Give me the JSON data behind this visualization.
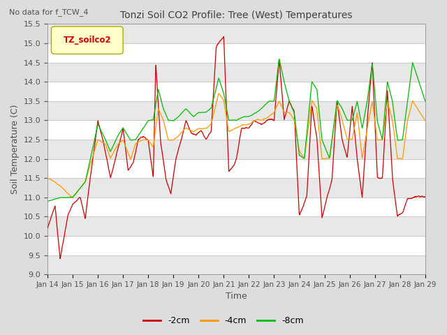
{
  "title": "Tonzi Soil CO2 Profile: Tree (West) Temperatures",
  "subtitle": "No data for f_TCW_4",
  "xlabel": "Time",
  "ylabel": "Soil Temperature (C)",
  "legend_label": "TZ_soilco2",
  "ylim": [
    9.0,
    15.5
  ],
  "yticks": [
    9.0,
    9.5,
    10.0,
    10.5,
    11.0,
    11.5,
    12.0,
    12.5,
    13.0,
    13.5,
    14.0,
    14.5,
    15.0,
    15.5
  ],
  "xtick_labels": [
    "Jan 14",
    "Jan 15",
    "Jan 16",
    "Jan 17",
    "Jan 18",
    "Jan 19",
    "Jan 20",
    "Jan 21",
    "Jan 22",
    "Jan 23",
    "Jan 24",
    "Jan 25",
    "Jan 26",
    "Jan 27",
    "Jan 28",
    "Jan 29"
  ],
  "series": {
    "neg2cm": {
      "color": "#cc0000",
      "label": "-2cm"
    },
    "neg4cm": {
      "color": "#ff9900",
      "label": "-4cm"
    },
    "neg8cm": {
      "color": "#00bb00",
      "label": "-8cm"
    }
  },
  "bg_color": "#dddddd",
  "plot_bg": "#ffffff",
  "alt_band_color": "#e8e8e8",
  "grid_color": "#cccccc",
  "title_color": "#404040",
  "axis_label_color": "#505050",
  "tick_color": "#505050"
}
